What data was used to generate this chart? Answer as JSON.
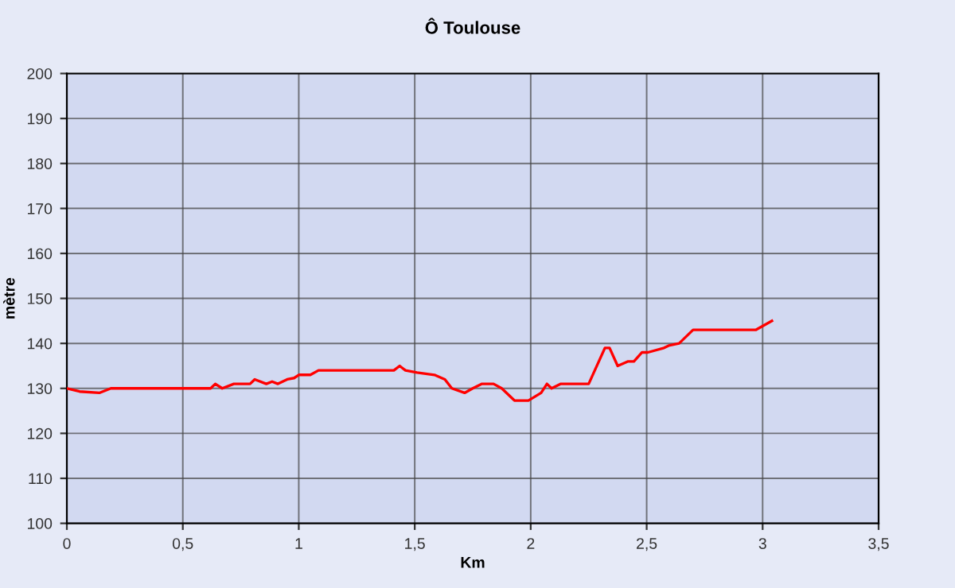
{
  "chart_data": {
    "type": "line",
    "title": "Ô Toulouse",
    "xlabel": "Km",
    "ylabel": "mètre",
    "series": [
      {
        "color": "#ff0000",
        "x": [
          0,
          0.055,
          0.14,
          0.19,
          0.62,
          0.64,
          0.67,
          0.72,
          0.79,
          0.81,
          0.86,
          0.885,
          0.91,
          0.95,
          0.98,
          1.0,
          1.05,
          1.085,
          1.41,
          1.435,
          1.46,
          1.51,
          1.585,
          1.63,
          1.66,
          1.715,
          1.75,
          1.79,
          1.84,
          1.875,
          1.93,
          1.99,
          2.045,
          2.07,
          2.09,
          2.13,
          2.25,
          2.32,
          2.34,
          2.375,
          2.42,
          2.445,
          2.48,
          2.505,
          2.575,
          2.595,
          2.64,
          2.7,
          2.97,
          3.04
        ],
        "values": [
          130,
          129.3,
          129,
          130,
          130,
          131,
          130,
          131,
          131,
          132,
          131,
          131.5,
          131,
          132,
          132.3,
          133,
          133,
          134,
          134,
          135,
          134,
          133.5,
          133,
          132,
          130,
          129,
          130,
          131,
          131,
          130,
          127.3,
          127.3,
          129,
          131,
          130,
          131,
          131,
          139,
          139,
          135,
          136,
          136,
          138,
          138,
          139,
          139.5,
          140,
          143,
          143,
          145
        ]
      }
    ],
    "xlim": [
      0,
      3.5
    ],
    "ylim": [
      100,
      200
    ],
    "xticks": [
      0,
      {
        "value": 0.5,
        "label": "0,5"
      },
      1,
      {
        "value": 1.5,
        "label": "1,5"
      },
      2,
      {
        "value": 2.5,
        "label": "2,5"
      },
      3,
      {
        "value": 3.5,
        "label": "3,5"
      }
    ],
    "yticks": [
      100,
      110,
      120,
      130,
      140,
      150,
      160,
      170,
      180,
      190,
      200
    ],
    "grid": true,
    "marker": "none",
    "line_style": "solid"
  }
}
